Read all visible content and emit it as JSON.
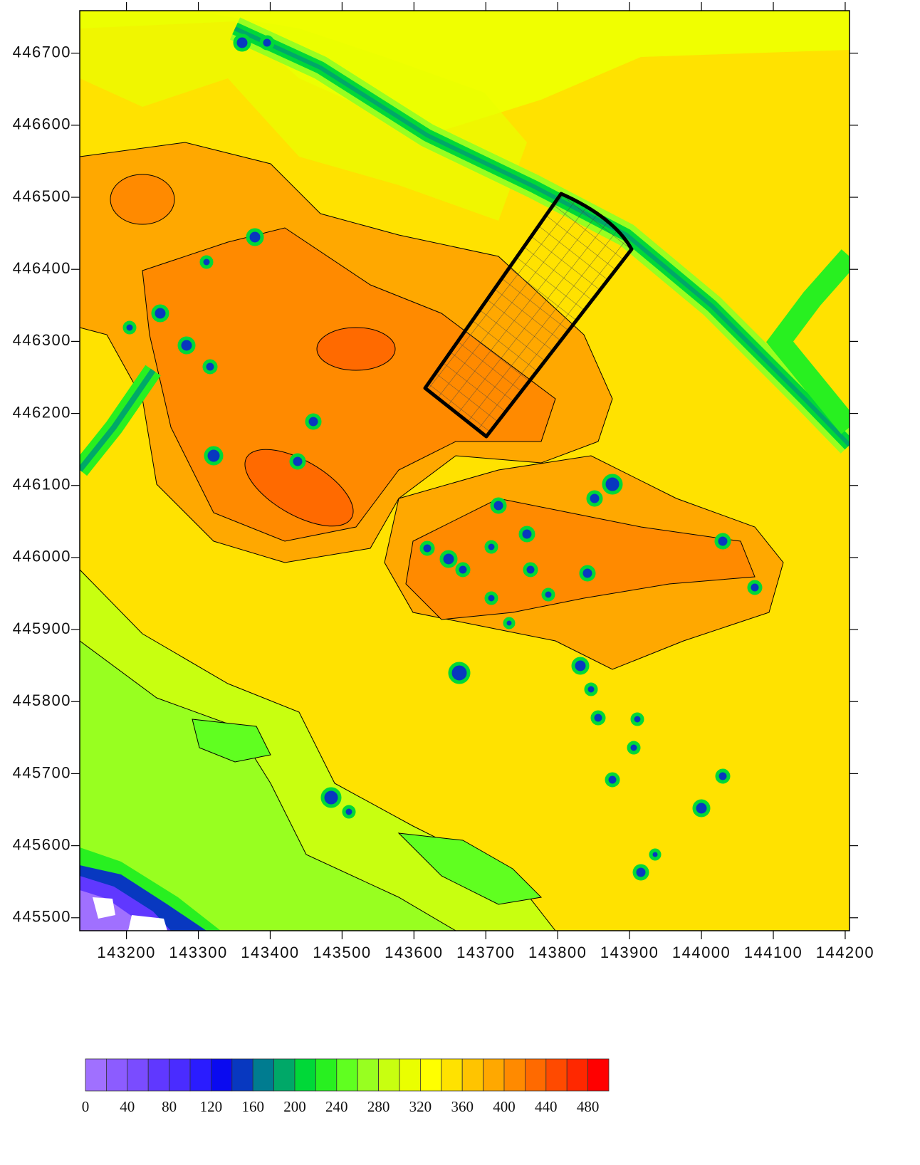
{
  "chart_data": {
    "type": "contour",
    "xlim": [
      143135,
      144206
    ],
    "xticks": [
      143200,
      143300,
      143400,
      143500,
      143600,
      143700,
      143800,
      143900,
      144000,
      144100,
      144200
    ],
    "ylim": [
      445482,
      446759
    ],
    "yticks": [
      445500,
      445600,
      445700,
      445800,
      445900,
      446000,
      446100,
      446200,
      446300,
      446400,
      446500,
      446600,
      446700
    ],
    "colorbar": {
      "lim": [
        0,
        500
      ],
      "ticks": [
        0,
        40,
        80,
        120,
        160,
        200,
        240,
        280,
        320,
        360,
        400,
        440,
        480
      ],
      "colors": [
        "#a070ff",
        "#8c5cff",
        "#7a4cff",
        "#6038ff",
        "#4a2cff",
        "#2a1cff",
        "#0a0af0",
        "#0838c0",
        "#007c90",
        "#00a868",
        "#00d838",
        "#28f020",
        "#60ff20",
        "#98ff20",
        "#c8ff10",
        "#eaff00",
        "#ffff00",
        "#ffe200",
        "#ffc400",
        "#ffa800",
        "#ff8a00",
        "#ff6a00",
        "#ff4a00",
        "#ff2800",
        "#ff0000"
      ]
    }
  }
}
